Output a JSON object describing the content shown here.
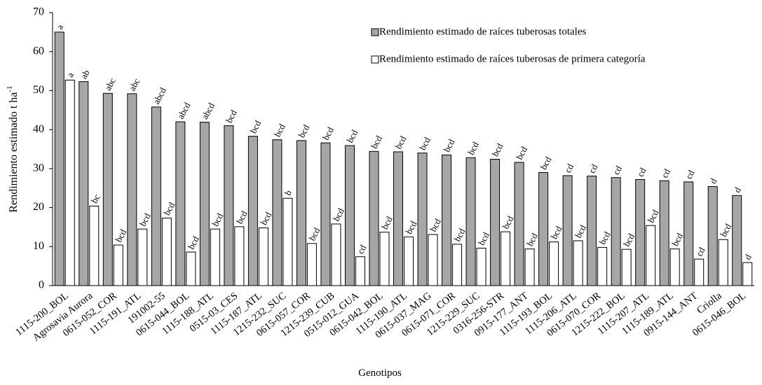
{
  "chart_data": {
    "type": "bar",
    "x_label": "Genotipos",
    "y_label": "Rendimiento estimado t ha",
    "y_label_sup": "-1",
    "categories": [
      "1115-200_BOL",
      "Agrosavia Aurora",
      "0615-052_COR",
      "1115-191_ATL",
      "191002-55",
      "0615-044_BOL",
      "1115-188_ATL",
      "0515-03_CES",
      "1115-187_ATL",
      "1215-232_SUC",
      "0615-057_COR",
      "1215-239_CUB",
      "0515-012_GUA",
      "0615-042_BOL",
      "1115-190_ATL",
      "0615-037_MAG",
      "0615-071_COR",
      "1215-229_SUC",
      "0316-256-STR",
      "0915-177_ANT",
      "1115-193_BOL",
      "1115-206_ATL",
      "0615-070_COR",
      "1215-222_BOL",
      "1115-207_ATL",
      "1115-189_ATL",
      "0915-144_ANT",
      "Criolla",
      "0615-046_BOL"
    ],
    "series": [
      {
        "name": "Rendimiento estimado de raíces tuberosas totales",
        "color": "#a6a6a6",
        "values": [
          65,
          52.3,
          49.3,
          49.2,
          45.8,
          42,
          41.9,
          41,
          38.3,
          37.4,
          37.2,
          36.6,
          35.9,
          34.4,
          34.3,
          34,
          33.5,
          32.8,
          32.4,
          31.6,
          29,
          28.2,
          28.1,
          27.7,
          27.2,
          26.9,
          26.6,
          25.4,
          23.1
        ],
        "letters": [
          "a",
          "ab",
          "abc",
          "abc",
          "abcd",
          "abcd",
          "abcd",
          "bcd",
          "bcd",
          "bcd",
          "bcd",
          "bcd",
          "bcd",
          "bcd",
          "bcd",
          "bcd",
          "bcd",
          "bcd",
          "bcd",
          "bcd",
          "bcd",
          "cd",
          "cd",
          "cd",
          "cd",
          "cd",
          "cd",
          "d",
          "d"
        ]
      },
      {
        "name": "Rendimiento estimado de raíces tuberosas de primera categoría",
        "color": "#ffffff",
        "values": [
          52.7,
          20.4,
          10.4,
          14.5,
          17.3,
          8.6,
          14.5,
          15.1,
          14.8,
          22.4,
          10.8,
          15.8,
          7.4,
          13.7,
          12.5,
          13.1,
          10.6,
          9.6,
          13.8,
          9.4,
          11.2,
          11.5,
          9.8,
          9.3,
          15.4,
          9.4,
          6.8,
          11.8,
          5.9
        ],
        "letters": [
          "a",
          "bc",
          "bcd",
          "bcd",
          "bcd",
          "bcd",
          "bcd",
          "bcd",
          "bcd",
          "b",
          "bcd",
          "bcd",
          "cd",
          "bcd",
          "bcd",
          "bcd",
          "bcd",
          "bcd",
          "bcd",
          "bcd",
          "bcd",
          "bcd",
          "bcd",
          "bcd",
          "bcd",
          "bcd",
          "cd",
          "bcd",
          "d"
        ]
      }
    ],
    "ylim": [
      0,
      70
    ],
    "yticks": [
      0,
      10,
      20,
      30,
      40,
      50,
      60,
      70
    ],
    "grid": false,
    "legend": "top-right"
  }
}
